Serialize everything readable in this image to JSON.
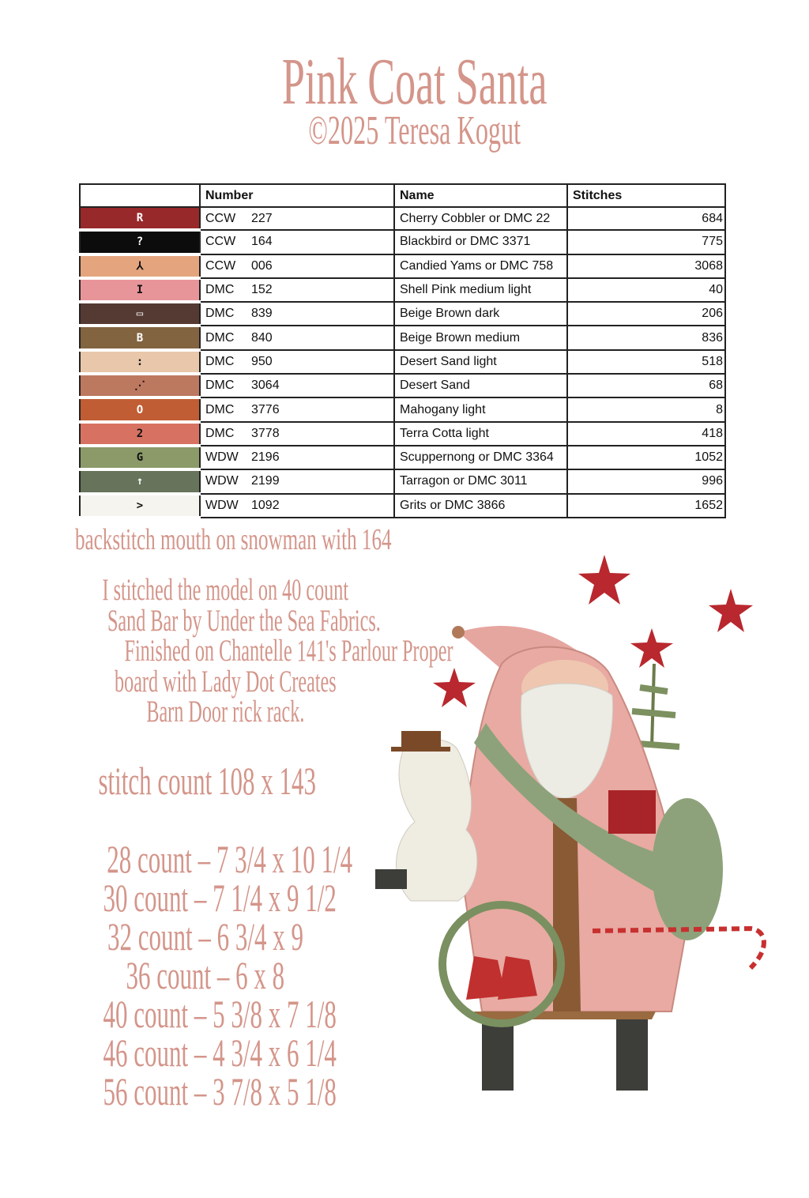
{
  "header": {
    "title": "Pink Coat Santa",
    "subtitle": "©2025 Teresa Kogut"
  },
  "table": {
    "columns": [
      "",
      "Number",
      "Name",
      "Stitches"
    ],
    "rows": [
      {
        "symbol": "R",
        "color": "#98292a",
        "symbol_color": "#ffffff",
        "brand": "CCW",
        "number": "227",
        "name": "Cherry Cobbler or DMC 22",
        "stitches": "684"
      },
      {
        "symbol": "?",
        "color": "#0c0c0c",
        "symbol_color": "#ffffff",
        "brand": "CCW",
        "number": "164",
        "name": "Blackbird or DMC 3371",
        "stitches": "775"
      },
      {
        "symbol": "⅄",
        "color": "#e4a57e",
        "symbol_color": "#111111",
        "brand": "CCW",
        "number": "006",
        "name": "Candied Yams or DMC 758",
        "stitches": "3068"
      },
      {
        "symbol": "I",
        "color": "#e8959a",
        "symbol_color": "#111111",
        "brand": "DMC",
        "number": "152",
        "name": "Shell Pink medium light",
        "stitches": "40"
      },
      {
        "symbol": "▭",
        "color": "#553a33",
        "symbol_color": "#ffffff",
        "brand": "DMC",
        "number": "839",
        "name": "Beige Brown dark",
        "stitches": "206"
      },
      {
        "symbol": "B",
        "color": "#826441",
        "symbol_color": "#ffffff",
        "brand": "DMC",
        "number": "840",
        "name": "Beige Brown medium",
        "stitches": "836"
      },
      {
        "symbol": ":",
        "color": "#e8c7ab",
        "symbol_color": "#111111",
        "brand": "DMC",
        "number": "950",
        "name": "Desert Sand light",
        "stitches": "518"
      },
      {
        "symbol": "⋰",
        "color": "#bd7860",
        "symbol_color": "#111111",
        "brand": "DMC",
        "number": "3064",
        "name": "Desert Sand",
        "stitches": "68"
      },
      {
        "symbol": "O",
        "color": "#c15d34",
        "symbol_color": "#ffffff",
        "brand": "DMC",
        "number": "3776",
        "name": "Mahogany light",
        "stitches": "8"
      },
      {
        "symbol": "2",
        "color": "#d77262",
        "symbol_color": "#111111",
        "brand": "DMC",
        "number": "3778",
        "name": "Terra Cotta light",
        "stitches": "418"
      },
      {
        "symbol": "G",
        "color": "#8c9a6a",
        "symbol_color": "#111111",
        "brand": "WDW",
        "number": "2196",
        "name": "Scuppernong or DMC 3364",
        "stitches": "1052"
      },
      {
        "symbol": "↑",
        "color": "#67735a",
        "symbol_color": "#ffffff",
        "brand": "WDW",
        "number": "2199",
        "name": "Tarragon or DMC 3011",
        "stitches": "996"
      },
      {
        "symbol": ">",
        "color": "#f6f4ee",
        "symbol_color": "#111111",
        "brand": "WDW",
        "number": "1092",
        "name": "Grits or DMC 3866",
        "stitches": "1652"
      }
    ]
  },
  "backstitch": "backstitch mouth on snowman with 164",
  "notes": [
    "I stitched the model on 40 count",
    "Sand Bar by Under the Sea Fabrics.",
    "Finished on Chantelle 141's Parlour Proper",
    "board with Lady Dot Creates",
    "Barn Door rick rack."
  ],
  "stitch_count": "stitch count 108 x 143",
  "sizes": [
    "28 count – 7 3/4 x 10 1/4",
    "30 count – 7 1/4 x 9 1/2",
    "32 count – 6 3/4 x 9",
    "36 count – 6 x 8",
    "40 count – 5 3/8 x 7 1/8",
    "46 count – 4 3/4 x 6 1/4",
    "56 count – 3 7/8 x 5 1/8"
  ],
  "colors": {
    "text_accent": "#d4958a"
  }
}
